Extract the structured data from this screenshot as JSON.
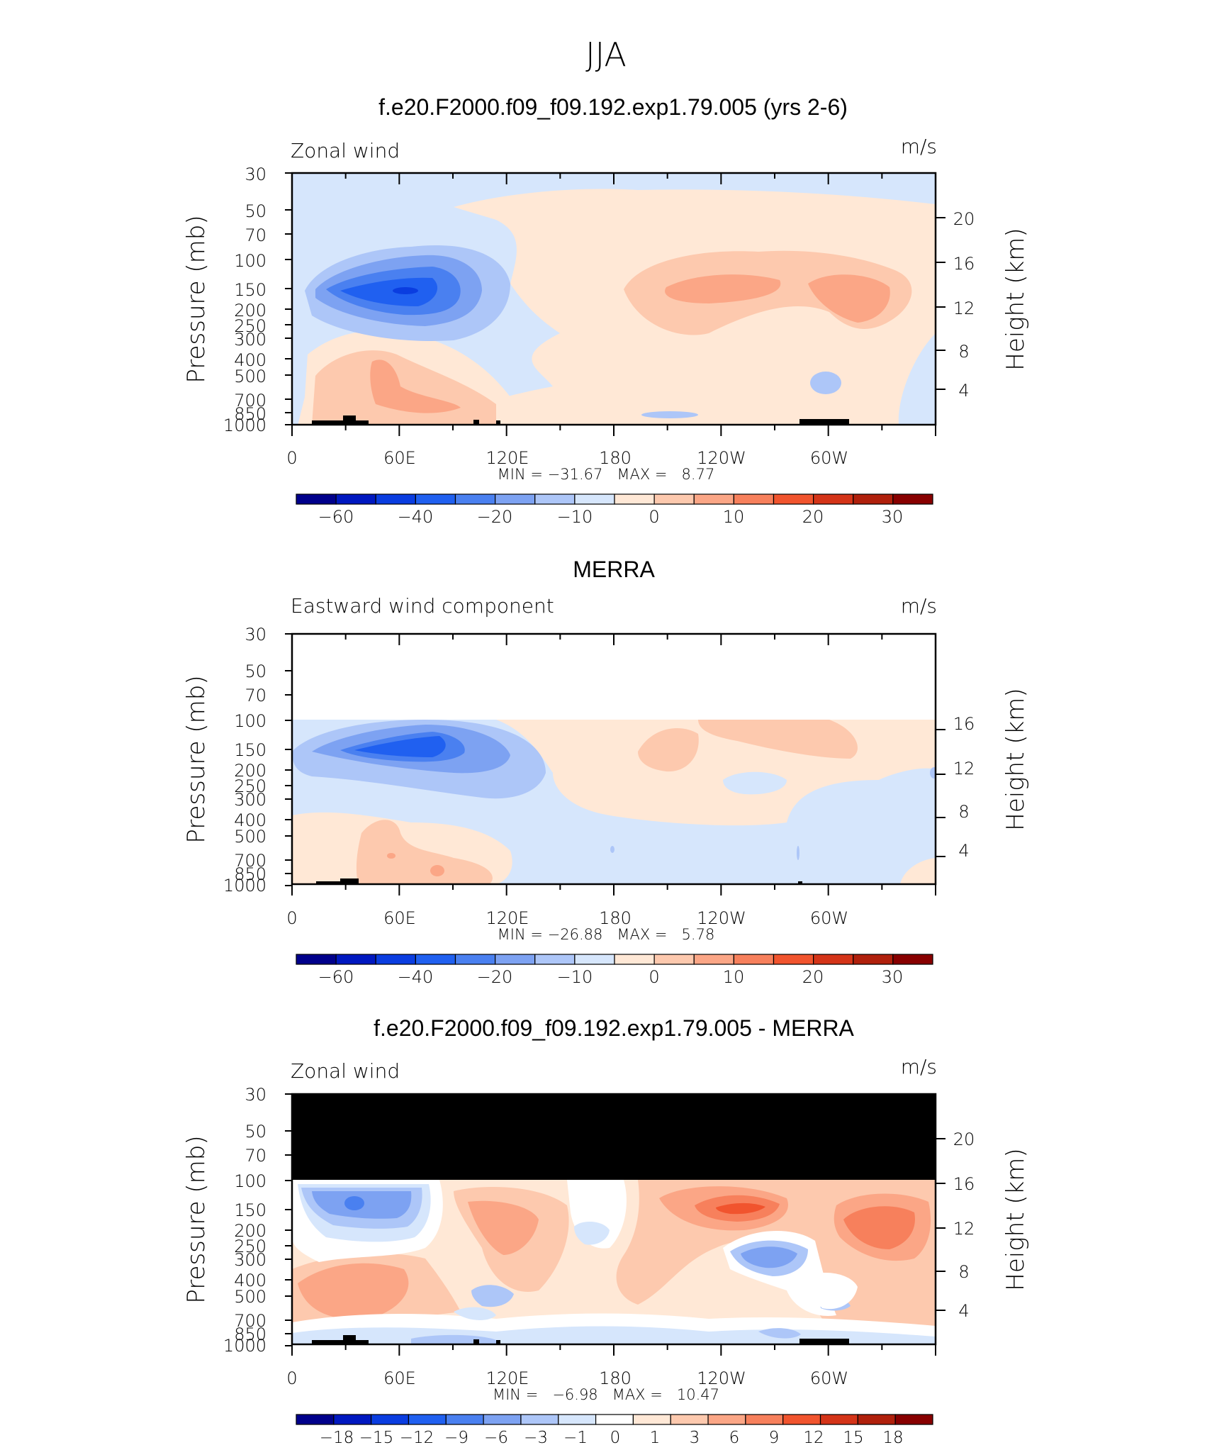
{
  "figure": {
    "title": "JJA"
  },
  "chart_data": [
    {
      "type": "contour",
      "title": "f.e20.F2000.f09_f09.192.exp1.79.005 (yrs 2-6)",
      "variable_label": "Zonal wind",
      "units": "m/s",
      "ylabel": "Pressure (mb)",
      "ylabel_right": "Height (km)",
      "x_tick_labels": [
        "0",
        "60E",
        "120E",
        "180",
        "120W",
        "60W"
      ],
      "y_tick_labels": [
        "30",
        "50",
        "70",
        "100",
        "150",
        "200",
        "250",
        "300",
        "400",
        "500",
        "700",
        "850",
        "1000"
      ],
      "right_tick_labels": [
        "20",
        "16",
        "12",
        "8",
        "4"
      ],
      "min_max_text": "MIN = −31.67   MAX =   8.77",
      "stats": {
        "min": -31.67,
        "max": 8.77
      },
      "colorbar_levels": [
        -70,
        -60,
        -50,
        -40,
        -30,
        -20,
        -15,
        -10,
        -5,
        0,
        5,
        10,
        15,
        20,
        25,
        30
      ],
      "colorbar_labels": [
        "−60",
        "−40",
        "−20",
        "−10",
        "0",
        "10",
        "20",
        "30"
      ],
      "features": [
        {
          "name": "upper easterly core near 70E",
          "lon": 70,
          "pressure_mb": 150,
          "value": -31.67
        },
        {
          "name": "upper westerly maximum",
          "lon": 235,
          "pressure_mb": 150,
          "value": 8.77
        }
      ]
    },
    {
      "type": "contour",
      "title": "MERRA",
      "variable_label": "Eastward wind component",
      "units": "m/s",
      "ylabel": "Pressure (mb)",
      "ylabel_right": "Height (km)",
      "x_tick_labels": [
        "0",
        "60E",
        "120E",
        "180",
        "120W",
        "60W"
      ],
      "y_tick_labels": [
        "30",
        "50",
        "70",
        "100",
        "150",
        "200",
        "250",
        "300",
        "400",
        "500",
        "700",
        "850",
        "1000"
      ],
      "right_tick_labels": [
        "16",
        "12",
        "8",
        "4"
      ],
      "min_max_text": "MIN = −26.88   MAX =   5.78",
      "stats": {
        "min": -26.88,
        "max": 5.78
      },
      "colorbar_levels": [
        -70,
        -60,
        -50,
        -40,
        -30,
        -20,
        -15,
        -10,
        -5,
        0,
        5,
        10,
        15,
        20,
        25,
        30
      ],
      "colorbar_labels": [
        "−60",
        "−40",
        "−20",
        "−10",
        "0",
        "10",
        "20",
        "30"
      ],
      "data_top_mb": 100,
      "features": [
        {
          "name": "upper easterly core near 80E",
          "lon": 80,
          "pressure_mb": 150,
          "value": -26.88
        },
        {
          "name": "upper westerly maximum",
          "lon": 210,
          "pressure_mb": 150,
          "value": 5.78
        }
      ]
    },
    {
      "type": "contour",
      "title": "f.e20.F2000.f09_f09.192.exp1.79.005 - MERRA",
      "variable_label": "Zonal wind",
      "units": "m/s",
      "ylabel": "Pressure (mb)",
      "ylabel_right": "Height (km)",
      "x_tick_labels": [
        "0",
        "60E",
        "120E",
        "180",
        "120W",
        "60W"
      ],
      "y_tick_labels": [
        "30",
        "50",
        "70",
        "100",
        "150",
        "200",
        "250",
        "300",
        "400",
        "500",
        "700",
        "850",
        "1000"
      ],
      "right_tick_labels": [
        "20",
        "16",
        "12",
        "8",
        "4"
      ],
      "min_max_text": "MIN =   −6.98   MAX =   10.47",
      "stats": {
        "min": -6.98,
        "max": 10.47
      },
      "colorbar_levels": [
        -21,
        -18,
        -15,
        -12,
        -9,
        -6,
        -3,
        -1,
        0,
        1,
        3,
        6,
        9,
        12,
        15,
        18,
        21
      ],
      "colorbar_labels": [
        "−18",
        "−15",
        "−12",
        "−9",
        "−6",
        "−3",
        "−1",
        "0",
        "1",
        "3",
        "6",
        "9",
        "12",
        "15",
        "18"
      ],
      "masked_above_mb": 100,
      "features": [
        {
          "name": "positive difference maximum",
          "lon": 240,
          "pressure_mb": 150,
          "value": 10.47
        },
        {
          "name": "negative difference minimum",
          "lon": 35,
          "pressure_mb": 150,
          "value": -6.98
        }
      ]
    }
  ],
  "colors": {
    "wind_colorbar": [
      "#00008b",
      "#0018c0",
      "#0a3de0",
      "#2060f0",
      "#4a80f0",
      "#7da2f2",
      "#adc6f8",
      "#d6e6fc",
      "#ffe8d6",
      "#fdc9ae",
      "#fba686",
      "#f7805c",
      "#f1542e",
      "#d43418",
      "#b0200c",
      "#880000"
    ],
    "diff_colorbar": [
      "#00008b",
      "#0018c0",
      "#0a3de0",
      "#2060f0",
      "#4a80f0",
      "#7da2f2",
      "#adc6f8",
      "#d6e6fc",
      "#ffffff",
      "#ffe8d6",
      "#fdc9ae",
      "#fba686",
      "#f7805c",
      "#f1542e",
      "#d43418",
      "#b0200c",
      "#880000"
    ]
  }
}
